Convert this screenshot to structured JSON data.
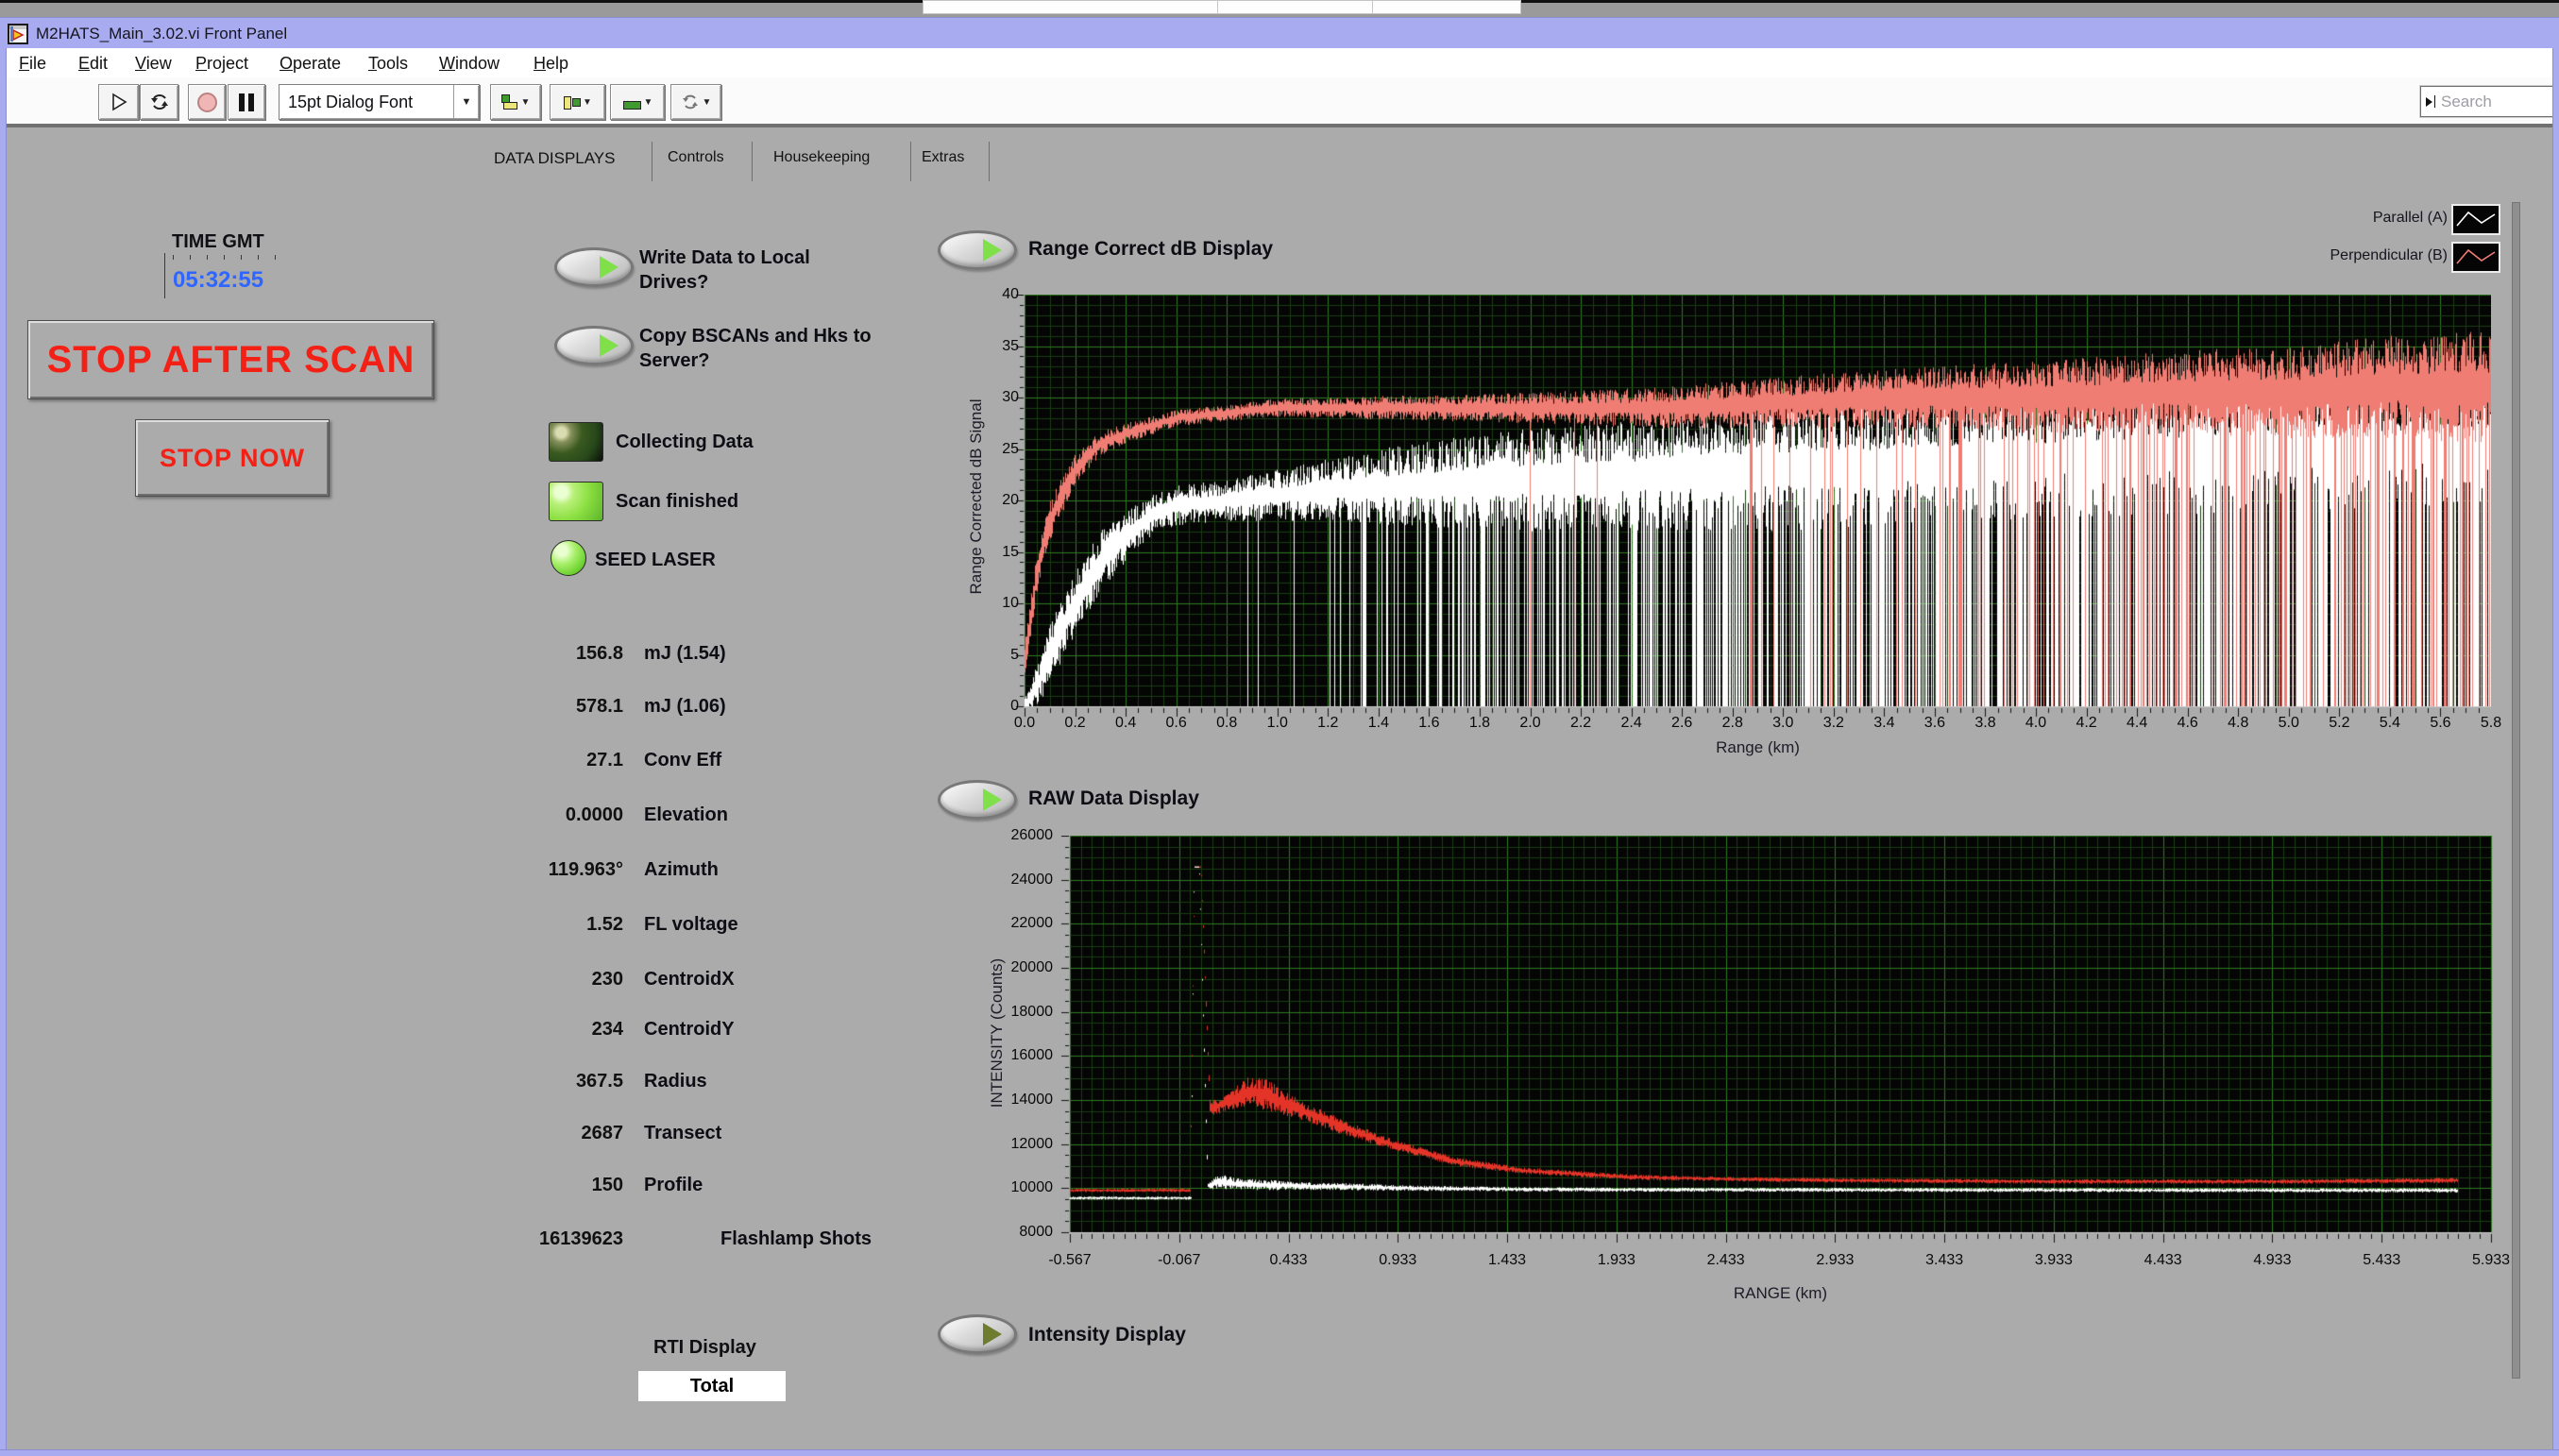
{
  "window": {
    "title": "M2HATS_Main_3.02.vi Front Panel",
    "icon": "labview-vi-icon"
  },
  "menu": {
    "items": [
      "File",
      "Edit",
      "View",
      "Project",
      "Operate",
      "Tools",
      "Window",
      "Help"
    ]
  },
  "toolbar": {
    "font_selector": "15pt Dialog Font",
    "buttons": [
      "run",
      "run-continuously",
      "abort",
      "pause",
      "align-objects",
      "distribute-objects",
      "resize-objects",
      "reorder-objects"
    ],
    "search": {
      "placeholder": "Search"
    }
  },
  "tabs": {
    "selected": "DATA DISPLAYS",
    "items": [
      "DATA DISPLAYS",
      "Controls",
      "Housekeeping",
      "Extras"
    ]
  },
  "left_panel": {
    "time_label": "TIME GMT",
    "time_value": "05:32:55",
    "stop_after_scan_label": "STOP AFTER SCAN",
    "stop_now_label": "STOP NOW"
  },
  "switches": [
    {
      "label": "Write Data to Local Drives?",
      "state": "on"
    },
    {
      "label": "Copy BSCANs and Hks to Server?",
      "state": "on"
    }
  ],
  "indicators": [
    {
      "label": "Collecting Data",
      "shape": "square",
      "state": "dim"
    },
    {
      "label": "Scan finished",
      "shape": "square",
      "state": "on"
    },
    {
      "label": "SEED LASER",
      "shape": "round",
      "state": "on"
    }
  ],
  "readouts": [
    {
      "value": "156.8",
      "label": "mJ (1.54)"
    },
    {
      "value": "578.1",
      "label": "mJ (1.06)"
    },
    {
      "value": "27.1",
      "label": "Conv Eff"
    },
    {
      "value": "0.0000",
      "label": "Elevation"
    },
    {
      "value": "119.963°",
      "label": "Azimuth"
    },
    {
      "value": "1.52",
      "label": "FL voltage"
    },
    {
      "value": "230",
      "label": "CentroidX"
    },
    {
      "value": "234",
      "label": "CentroidY"
    },
    {
      "value": "367.5",
      "label": "Radius"
    },
    {
      "value": "2687",
      "label": "Transect"
    },
    {
      "value": "150",
      "label": "Profile"
    },
    {
      "value": "16139623",
      "label": "Flashlamp Shots"
    }
  ],
  "rti_display": {
    "label": "RTI Display",
    "value": "Total"
  },
  "display_toggles": {
    "range_correct": "Range Correct dB Display",
    "raw": "RAW Data Display",
    "intensity": "Intensity Display"
  },
  "legend": [
    {
      "label": "Parallel (A)",
      "color": "#ffffff"
    },
    {
      "label": "Perpendicular (B)",
      "color": "#ef7d74"
    }
  ],
  "chart_data": [
    {
      "type": "line",
      "title": "Range Correct dB Display",
      "xlabel": "Range (km)",
      "ylabel": "Range Corrected dB Signal",
      "xlim": [
        0,
        5.8
      ],
      "ylim": [
        0,
        40
      ],
      "grid": true,
      "background": "#050505",
      "grid_minor_color": "#1a3d12",
      "grid_major_color": "#2f7a22",
      "x_minor": 0.05,
      "x_major": 0.2,
      "y_minor": 1,
      "y_major": 5,
      "xticks": [
        "0.0",
        "0.2",
        "0.4",
        "0.6",
        "0.8",
        "1.0",
        "1.2",
        "1.4",
        "1.6",
        "1.8",
        "2.0",
        "2.2",
        "2.4",
        "2.6",
        "2.8",
        "3.0",
        "3.2",
        "3.4",
        "3.6",
        "3.8",
        "4.0",
        "4.2",
        "4.4",
        "4.6",
        "4.8",
        "5.0",
        "5.2",
        "5.4",
        "5.6",
        "5.8"
      ],
      "yticks": [
        "0",
        "5",
        "10",
        "15",
        "20",
        "25",
        "30",
        "35",
        "40"
      ],
      "seed": 11,
      "draw_order": [
        0,
        1
      ],
      "series": [
        {
          "name": "Parallel (A)",
          "color": "#ffffff",
          "x": [
            0,
            0.05,
            0.1,
            0.2,
            0.3,
            0.4,
            0.5,
            0.6,
            0.8,
            1.0,
            1.2,
            1.5,
            2.0,
            2.5,
            3.0,
            3.5,
            4.0,
            4.5,
            5.0,
            5.8
          ],
          "mean": [
            0,
            2,
            5,
            10,
            14,
            16.5,
            18.5,
            19.5,
            20,
            20.5,
            21,
            21.5,
            22,
            22.5,
            23,
            23.5,
            24,
            24.5,
            25,
            25.5
          ],
          "noise_amp": [
            1,
            2,
            3,
            3,
            3,
            2.5,
            2,
            2,
            2,
            2.5,
            3,
            4,
            5,
            5.5,
            6,
            6,
            6,
            6,
            6,
            6
          ],
          "dropout_prob": [
            0,
            0,
            0,
            0,
            0,
            0,
            0,
            0,
            0,
            0.02,
            0.1,
            0.22,
            0.35,
            0.45,
            0.55,
            0.62,
            0.7,
            0.75,
            0.78,
            0.8
          ]
        },
        {
          "name": "Perpendicular (B)",
          "color": "#ef7d74",
          "x": [
            0,
            0.05,
            0.1,
            0.2,
            0.3,
            0.4,
            0.6,
            0.8,
            1.0,
            1.5,
            2.0,
            2.5,
            3.0,
            3.5,
            4.0,
            4.5,
            5.0,
            5.4,
            5.8
          ],
          "mean": [
            4,
            13,
            18,
            23,
            25.5,
            26.5,
            28,
            28.5,
            29,
            29,
            29,
            29,
            29.5,
            30,
            30,
            30.5,
            30.5,
            31,
            31
          ],
          "noise_amp": [
            2,
            2,
            2,
            1.5,
            1.2,
            1,
            0.8,
            0.8,
            0.9,
            1.2,
            1.5,
            2,
            2.5,
            3,
            3.5,
            4,
            4.5,
            5,
            5.5
          ],
          "dropout_prob": [
            0,
            0,
            0,
            0,
            0,
            0,
            0,
            0,
            0,
            0,
            0.01,
            0.03,
            0.06,
            0.1,
            0.15,
            0.18,
            0.22,
            0.25,
            0.28
          ]
        }
      ]
    },
    {
      "type": "line",
      "title": "RAW Data Display",
      "xlabel": "RANGE (km)",
      "ylabel": "INTENSITY (Counts)",
      "xlim": [
        -0.567,
        5.933
      ],
      "ylim": [
        8000,
        26000
      ],
      "grid": true,
      "background": "#050505",
      "grid_minor_color": "#1a3d12",
      "grid_major_color": "#2f7a22",
      "x_minor": 0.05,
      "x_major": 0.5,
      "y_minor": 500,
      "y_major": 2000,
      "xticks": [
        "-0.567",
        "-0.067",
        "0.433",
        "0.933",
        "1.433",
        "1.933",
        "2.433",
        "2.933",
        "3.433",
        "3.933",
        "4.433",
        "4.933",
        "5.433",
        "5.933"
      ],
      "yticks": [
        "8000",
        "10000",
        "12000",
        "14000",
        "16000",
        "18000",
        "20000",
        "22000",
        "24000",
        "26000"
      ],
      "seed": 33,
      "draw_order": [
        1,
        0
      ],
      "x_end": 5.78,
      "series": [
        {
          "name": "Parallel (A)",
          "color": "#ffffff",
          "x": [
            -0.567,
            -0.012,
            0.002,
            0.026,
            0.065,
            0.12,
            0.2,
            0.3,
            0.5,
            0.8,
            1.0,
            1.5,
            2.0,
            3.0,
            4.0,
            5.0,
            5.76
          ],
          "mean": [
            9550,
            9550,
            24600,
            24600,
            10100,
            10300,
            10200,
            10150,
            10100,
            10050,
            10000,
            9950,
            9930,
            9920,
            9910,
            9900,
            9900
          ],
          "noise_amp": [
            70,
            70,
            0,
            0,
            150,
            350,
            250,
            250,
            180,
            150,
            120,
            100,
            90,
            90,
            90,
            90,
            100
          ],
          "dropout_prob": [
            0,
            0,
            0,
            0,
            0,
            0,
            0,
            0,
            0,
            0,
            0,
            0,
            0,
            0,
            0,
            0,
            0
          ]
        },
        {
          "name": "Perpendicular (B)",
          "color": "#e43428",
          "x": [
            -0.567,
            -0.016,
            0.004,
            0.034,
            0.075,
            0.15,
            0.25,
            0.32,
            0.4,
            0.5,
            0.7,
            0.9,
            1.2,
            1.5,
            2.0,
            2.5,
            3.0,
            4.0,
            5.0,
            5.76
          ],
          "mean": [
            9900,
            9900,
            24600,
            24600,
            13600,
            13900,
            14400,
            14300,
            13900,
            13500,
            12700,
            12000,
            11200,
            10800,
            10500,
            10400,
            10350,
            10300,
            10300,
            10350
          ],
          "noise_amp": [
            80,
            80,
            0,
            0,
            300,
            450,
            650,
            800,
            600,
            450,
            350,
            250,
            200,
            150,
            120,
            100,
            100,
            100,
            100,
            120
          ],
          "dropout_prob": [
            0,
            0,
            0,
            0,
            0,
            0,
            0,
            0,
            0,
            0,
            0,
            0,
            0,
            0,
            0,
            0,
            0,
            0,
            0,
            0
          ]
        }
      ]
    }
  ]
}
